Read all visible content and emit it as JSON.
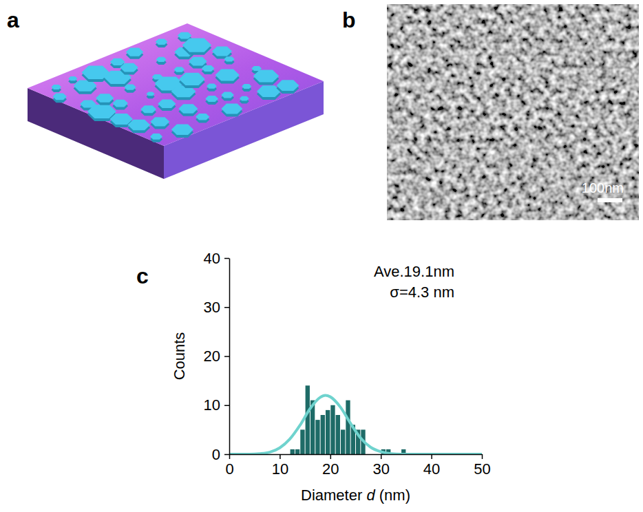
{
  "panels": [
    "a",
    "b",
    "c"
  ],
  "scale_bar": "100nm",
  "chart_data": {
    "type": "histogram",
    "x_label": "Diameter d (nm)",
    "y_label": "Counts",
    "annotations": [
      "Ave.19.1nm",
      "σ=4.3 nm"
    ],
    "bins": [
      10,
      11,
      12,
      13,
      14,
      15,
      16,
      17,
      18,
      19,
      20,
      21,
      22,
      23,
      24,
      25,
      26,
      27,
      28,
      29,
      30,
      31,
      32,
      33,
      34,
      35
    ],
    "values": [
      0,
      0,
      1,
      1,
      5,
      14,
      11,
      7,
      8,
      9,
      10,
      8,
      5,
      11,
      6,
      5,
      5,
      0,
      0,
      0,
      1,
      1,
      0,
      0,
      1
    ],
    "color": "#1e6b67",
    "xlim": [
      0,
      50
    ],
    "xticks": [
      0,
      10,
      20,
      30,
      40,
      50
    ],
    "ylim": [
      0,
      40
    ],
    "yticks": [
      0,
      10,
      20,
      30,
      40
    ],
    "series": [
      {
        "type": "line",
        "color": "#6fd3ce",
        "x": [
          0,
          4,
          6,
          8,
          10,
          12,
          14,
          16,
          18,
          19,
          20,
          22,
          24,
          26,
          28,
          30,
          32,
          34,
          40,
          50
        ],
        "values": [
          0,
          0,
          0.1,
          0.4,
          1.3,
          3.1,
          5.9,
          9.3,
          11.6,
          12,
          11.7,
          9.6,
          6.3,
          3.3,
          1.4,
          0.5,
          0.1,
          0,
          0,
          0
        ]
      }
    ]
  }
}
